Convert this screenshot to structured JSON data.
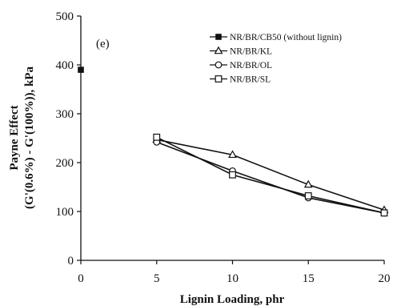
{
  "chart_data": {
    "type": "line",
    "panel_label": "(e)",
    "xlabel": "Lignin Loading, phr",
    "ylabel_line1": "Payne Effect",
    "ylabel_line2": "(G'(0.6%) - G'(100%)), kPa",
    "xlim": [
      0,
      20
    ],
    "ylim": [
      0,
      500
    ],
    "xticks": [
      0,
      5,
      10,
      15,
      20
    ],
    "yticks": [
      0,
      100,
      200,
      300,
      400,
      500
    ],
    "grid": false,
    "legend_position": "top-right",
    "series": [
      {
        "name": "NR/BR/CB50 (without lignin)",
        "marker": "filled-square",
        "color": "#111111",
        "x": [
          0
        ],
        "y": [
          390
        ]
      },
      {
        "name": "NR/BR/KL",
        "marker": "open-triangle",
        "color": "#111111",
        "x": [
          5,
          10,
          15,
          20
        ],
        "y": [
          247,
          216,
          155,
          103
        ]
      },
      {
        "name": "NR/BR/OL",
        "marker": "open-circle",
        "color": "#111111",
        "x": [
          5,
          10,
          15,
          20
        ],
        "y": [
          242,
          183,
          128,
          97
        ]
      },
      {
        "name": "NR/BR/SL",
        "marker": "open-square",
        "color": "#111111",
        "x": [
          5,
          10,
          15,
          20
        ],
        "y": [
          252,
          175,
          132,
          97
        ]
      }
    ]
  }
}
